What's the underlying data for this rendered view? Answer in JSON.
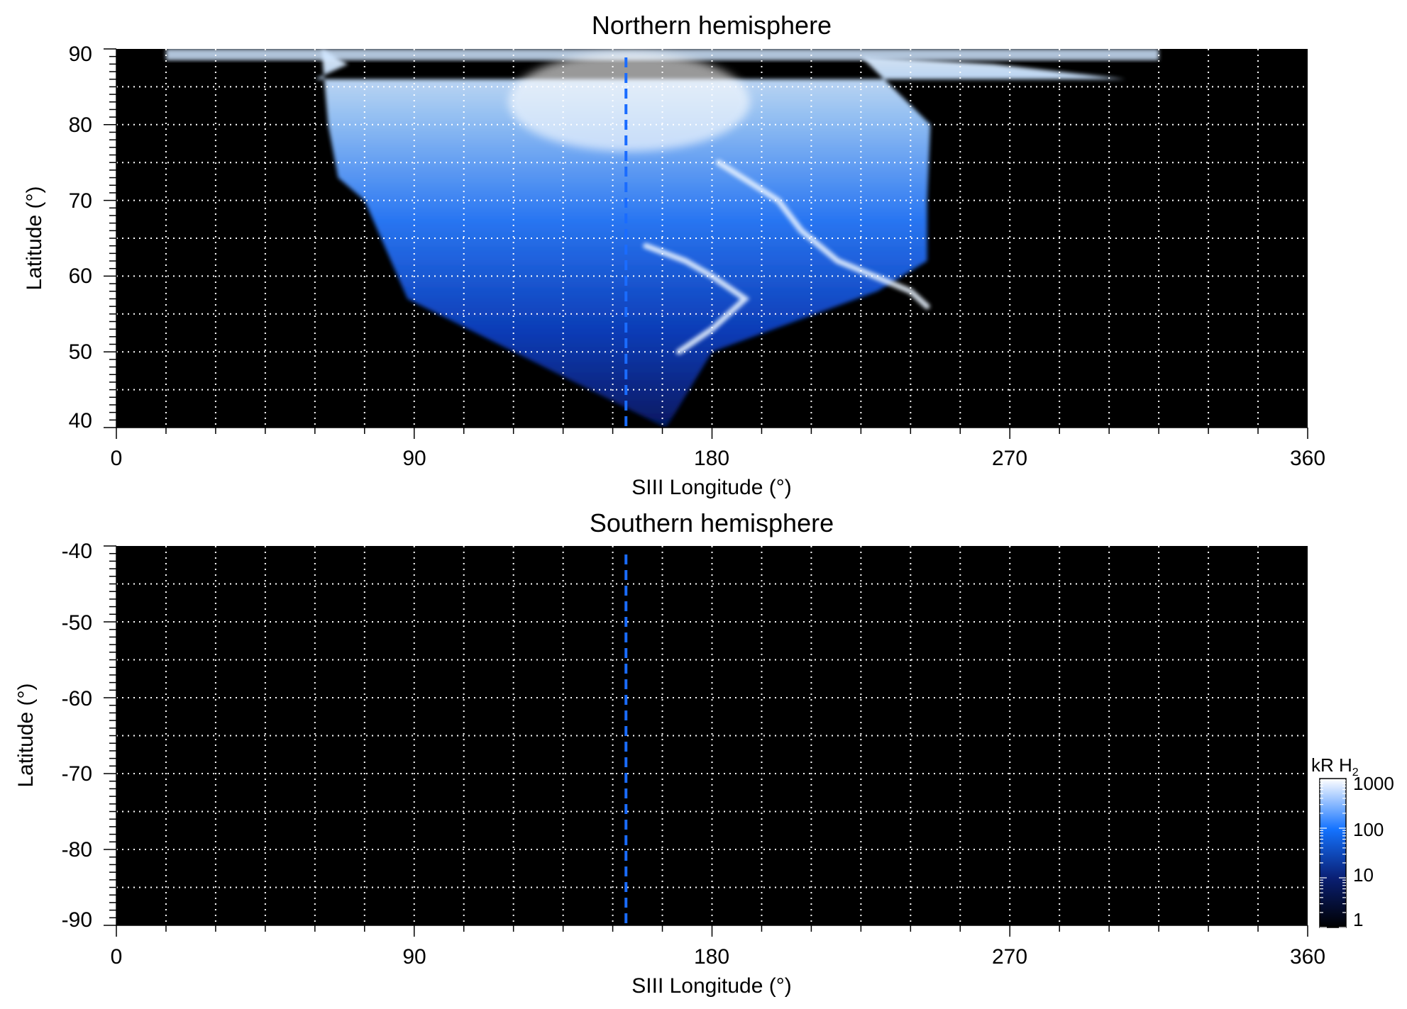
{
  "chart_data": [
    {
      "type": "heatmap",
      "title": "Northern hemisphere",
      "xlabel": "SIII Longitude (°)",
      "ylabel": "Latitude (°)",
      "xlim": [
        0,
        360
      ],
      "ylim": [
        40,
        90
      ],
      "xticks": [
        0,
        90,
        180,
        270,
        360
      ],
      "yticks": [
        40,
        50,
        60,
        70,
        80,
        90
      ],
      "grid": true,
      "dashed_longitude": 154,
      "emission": {
        "left_edge_lon": [
          [
            86,
            60
          ],
          [
            88,
            70
          ],
          [
            90,
            62
          ],
          [
            80,
            64
          ],
          [
            73,
            67
          ],
          [
            70,
            75
          ],
          [
            62,
            83
          ],
          [
            57,
            88
          ]
        ],
        "right_edge_lon": [
          [
            86,
            305
          ],
          [
            88,
            265
          ],
          [
            89,
            225
          ],
          [
            80,
            246
          ],
          [
            70,
            245
          ],
          [
            62,
            245
          ],
          [
            58,
            230
          ],
          [
            50,
            180
          ],
          [
            42,
            169
          ],
          [
            40,
            166
          ]
        ],
        "bright_arcs": [
          {
            "name": "main oval",
            "points": [
              [
                75,
                182
              ],
              [
                70,
                200
              ],
              [
                66,
                207
              ],
              [
                62,
                218
              ],
              [
                58,
                240
              ],
              [
                56,
                245
              ]
            ]
          },
          {
            "name": "inner arc",
            "points": [
              [
                64,
                160
              ],
              [
                62,
                172
              ],
              [
                60,
                180
              ],
              [
                57,
                190
              ],
              [
                53,
                180
              ],
              [
                50,
                170
              ]
            ]
          }
        ]
      }
    },
    {
      "type": "heatmap",
      "title": "Southern hemisphere",
      "xlabel": "SIII Longitude (°)",
      "ylabel": "Latitude (°)",
      "xlim": [
        0,
        360
      ],
      "ylim": [
        -90,
        -40
      ],
      "xticks": [
        0,
        90,
        180,
        270,
        360
      ],
      "yticks": [
        -90,
        -80,
        -70,
        -60,
        -50,
        -40
      ],
      "grid": true,
      "dashed_longitude": 154
    }
  ],
  "colorbar": {
    "label_main": "kR H",
    "label_sub": "2",
    "scale": "log",
    "range": [
      1,
      1000
    ],
    "ticks": [
      "1",
      "10",
      "100",
      "1000"
    ],
    "colors": [
      "#000000",
      "#0a1f73",
      "#1473ff",
      "#ffffff"
    ]
  },
  "colors": {
    "background": "#000000",
    "dashed_line": "#1a6cff",
    "grid": "#ffffff"
  }
}
